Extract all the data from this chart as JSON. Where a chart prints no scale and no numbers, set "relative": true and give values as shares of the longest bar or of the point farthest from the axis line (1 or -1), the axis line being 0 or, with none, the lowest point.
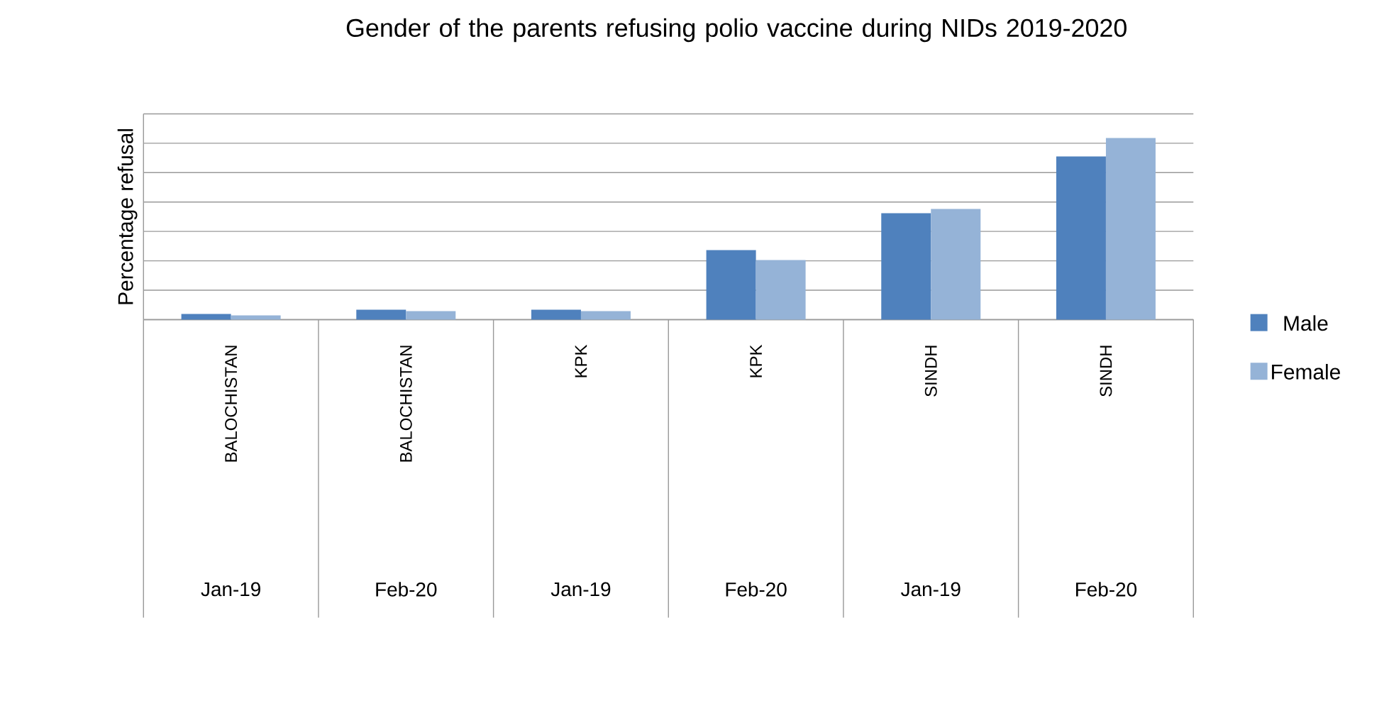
{
  "chart_data": {
    "type": "bar",
    "title": "Gender of the parents refusing polio vaccine during NIDs 2019-2020",
    "ylabel": "Percentage refusal",
    "categories": [
      "BALOCHISTAN",
      "BALOCHISTAN",
      "KPK",
      "KPK",
      "SINDH",
      "SINDH"
    ],
    "annotations": [
      "Jan-19",
      "Feb-20",
      "Jan-19",
      "Feb-20",
      "Jan-19",
      "Feb-20"
    ],
    "relative": true,
    "grid": "y",
    "legend": "right",
    "series": [
      {
        "name": "Male",
        "color": "#4f81bd",
        "values": [
          0.031,
          0.055,
          0.055,
          0.383,
          0.586,
          0.898
        ]
      },
      {
        "name": "Female",
        "color": "#95b3d7",
        "values": [
          0.023,
          0.047,
          0.047,
          0.328,
          0.609,
          1.0
        ]
      }
    ]
  }
}
